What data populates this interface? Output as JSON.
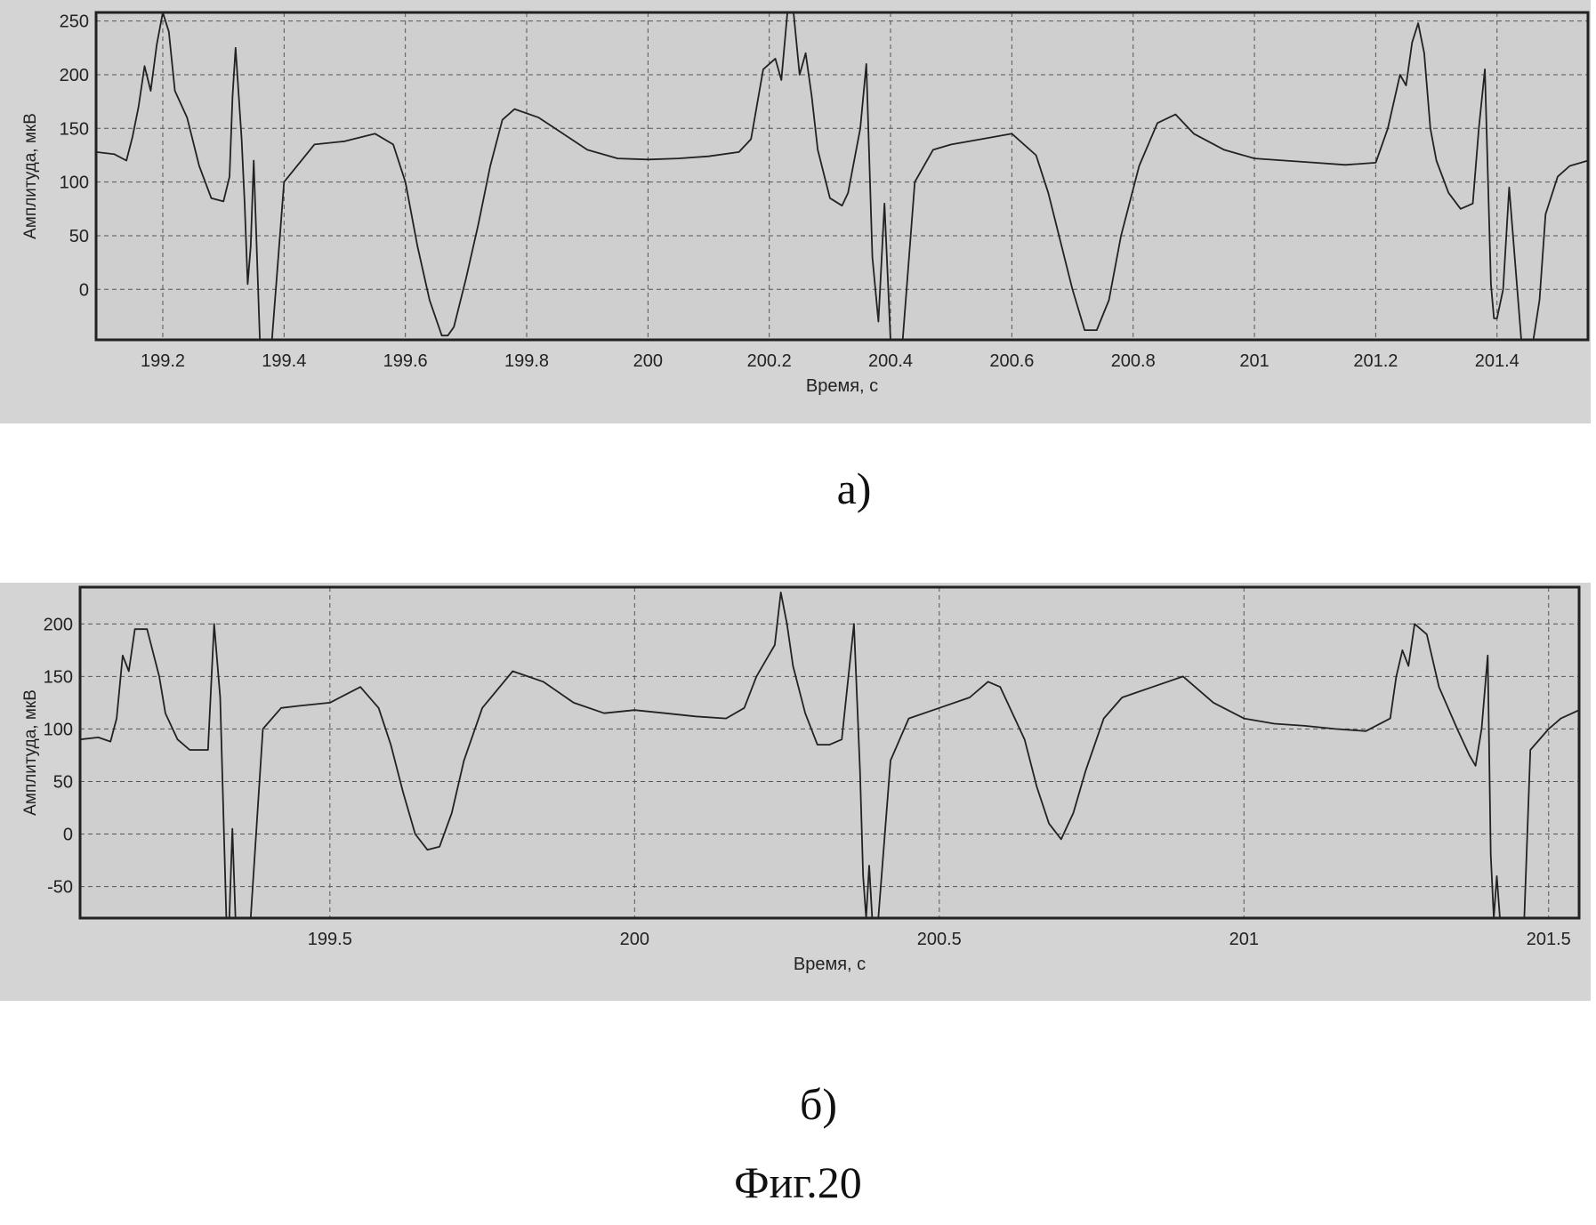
{
  "figure_label": "Фиг.20",
  "chart_data": [
    {
      "type": "line",
      "panel_label": "а)",
      "xlabel": "Время, с",
      "ylabel": "Амплитуда, мкВ",
      "xlim": [
        199.09,
        201.55
      ],
      "ylim": [
        -47,
        258
      ],
      "xticks": [
        199.2,
        199.4,
        199.6,
        199.8,
        200,
        200.2,
        200.4,
        200.6,
        200.8,
        201,
        201.2,
        201.4
      ],
      "xtick_labels": [
        "199.2",
        "199.4",
        "199.6",
        "199.8",
        "200",
        "200.2",
        "200.4",
        "200.6",
        "200.8",
        "201",
        "201.2",
        "201.4"
      ],
      "yticks": [
        0,
        50,
        100,
        150,
        200,
        250
      ],
      "ytick_labels": [
        "0",
        "50",
        "100",
        "150",
        "200",
        "250"
      ],
      "grid": true,
      "series": [
        {
          "x": [
            199.09,
            199.12,
            199.14,
            199.15,
            199.16,
            199.17,
            199.18,
            199.19,
            199.2,
            199.21,
            199.22,
            199.24,
            199.26,
            199.28,
            199.3,
            199.31,
            199.315,
            199.32,
            199.33,
            199.335,
            199.34,
            199.345,
            199.35,
            199.36,
            199.38,
            199.4,
            199.45,
            199.5,
            199.55,
            199.58,
            199.6,
            199.62,
            199.64,
            199.66,
            199.67,
            199.68,
            199.7,
            199.72,
            199.74,
            199.76,
            199.78,
            199.82,
            199.86,
            199.9,
            199.95,
            200.0,
            200.05,
            200.1,
            200.15,
            200.17,
            200.19,
            200.21,
            200.22,
            200.23,
            200.24,
            200.25,
            200.26,
            200.27,
            200.28,
            200.3,
            200.32,
            200.33,
            200.35,
            200.36,
            200.37,
            200.38,
            200.39,
            200.4,
            200.42,
            200.44,
            200.47,
            200.5,
            200.55,
            200.6,
            200.64,
            200.66,
            200.68,
            200.7,
            200.72,
            200.74,
            200.76,
            200.78,
            200.81,
            200.84,
            200.87,
            200.9,
            200.95,
            201.0,
            201.05,
            201.1,
            201.15,
            201.2,
            201.22,
            201.24,
            201.25,
            201.26,
            201.27,
            201.28,
            201.29,
            201.3,
            201.32,
            201.34,
            201.36,
            201.37,
            201.38,
            201.39,
            201.395,
            201.4,
            201.41,
            201.42,
            201.44,
            201.46,
            201.47,
            201.48,
            201.5,
            201.52,
            201.55
          ],
          "y": [
            128,
            126,
            120,
            142,
            170,
            208,
            185,
            228,
            258,
            240,
            185,
            160,
            115,
            85,
            82,
            105,
            180,
            225,
            140,
            80,
            5,
            40,
            120,
            -47,
            -47,
            100,
            135,
            138,
            145,
            135,
            100,
            40,
            -10,
            -43,
            -43,
            -35,
            10,
            60,
            115,
            158,
            168,
            160,
            145,
            130,
            122,
            121,
            122,
            124,
            128,
            140,
            205,
            215,
            195,
            258,
            258,
            200,
            220,
            180,
            130,
            85,
            78,
            90,
            150,
            210,
            30,
            -30,
            80,
            -47,
            -47,
            100,
            130,
            135,
            140,
            145,
            125,
            90,
            45,
            0,
            -38,
            -38,
            -10,
            50,
            115,
            155,
            163,
            145,
            130,
            122,
            120,
            118,
            116,
            118,
            150,
            200,
            190,
            230,
            248,
            220,
            150,
            120,
            90,
            75,
            80,
            150,
            205,
            5,
            -27,
            -27,
            0,
            95,
            -47,
            -47,
            -10,
            70,
            105,
            115,
            120
          ]
        }
      ]
    },
    {
      "type": "line",
      "panel_label": "б)",
      "xlabel": "Время, с",
      "ylabel": "Амплитуда, мкВ",
      "xlim": [
        199.09,
        201.55
      ],
      "ylim": [
        -80,
        235
      ],
      "xticks": [
        199.5,
        200,
        200.5,
        201,
        201.5
      ],
      "xtick_labels": [
        "199.5",
        "200",
        "200.5",
        "201",
        "201.5"
      ],
      "yticks": [
        -50,
        0,
        50,
        100,
        150,
        200
      ],
      "ytick_labels": [
        "-50",
        "0",
        "50",
        "100",
        "150",
        "200"
      ],
      "grid": true,
      "series": [
        {
          "x": [
            199.09,
            199.12,
            199.14,
            199.15,
            199.16,
            199.17,
            199.18,
            199.2,
            199.22,
            199.23,
            199.25,
            199.27,
            199.29,
            199.3,
            199.31,
            199.32,
            199.33,
            199.335,
            199.34,
            199.345,
            199.35,
            199.37,
            199.39,
            199.42,
            199.45,
            199.5,
            199.55,
            199.58,
            199.6,
            199.62,
            199.64,
            199.66,
            199.68,
            199.7,
            199.72,
            199.75,
            199.8,
            199.85,
            199.9,
            199.95,
            200.0,
            200.05,
            200.1,
            200.15,
            200.18,
            200.2,
            200.22,
            200.23,
            200.24,
            200.25,
            200.26,
            200.28,
            200.3,
            200.32,
            200.34,
            200.36,
            200.37,
            200.375,
            200.38,
            200.385,
            200.39,
            200.4,
            200.42,
            200.45,
            200.5,
            200.55,
            200.58,
            200.6,
            200.64,
            200.66,
            200.68,
            200.7,
            200.72,
            200.74,
            200.77,
            200.8,
            200.85,
            200.9,
            200.95,
            201.0,
            201.05,
            201.1,
            201.15,
            201.2,
            201.24,
            201.25,
            201.26,
            201.27,
            201.28,
            201.3,
            201.32,
            201.35,
            201.37,
            201.38,
            201.39,
            201.4,
            201.405,
            201.41,
            201.415,
            201.42,
            201.44,
            201.46,
            201.47,
            201.5,
            201.52,
            201.55
          ],
          "y": [
            90,
            92,
            88,
            110,
            170,
            155,
            195,
            195,
            150,
            115,
            90,
            80,
            80,
            80,
            200,
            130,
            -80,
            -80,
            5,
            -80,
            -80,
            -80,
            100,
            120,
            122,
            125,
            140,
            120,
            85,
            40,
            0,
            -15,
            -12,
            20,
            70,
            120,
            155,
            145,
            125,
            115,
            118,
            115,
            112,
            110,
            120,
            150,
            170,
            180,
            230,
            200,
            160,
            115,
            85,
            85,
            90,
            200,
            60,
            -40,
            -80,
            -30,
            -80,
            -80,
            70,
            110,
            120,
            130,
            145,
            140,
            90,
            45,
            10,
            -5,
            20,
            60,
            110,
            130,
            140,
            150,
            125,
            110,
            105,
            103,
            100,
            98,
            110,
            150,
            175,
            160,
            200,
            190,
            140,
            100,
            75,
            65,
            100,
            170,
            -20,
            -80,
            -40,
            -80,
            -80,
            -80,
            80,
            100,
            110,
            118
          ]
        }
      ]
    }
  ]
}
